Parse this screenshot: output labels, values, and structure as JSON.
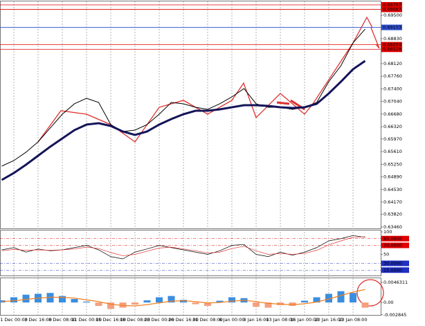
{
  "chart_data": [
    {
      "type": "line",
      "categories": [
        null,
        "1 Dec 00:00",
        null,
        "3 Dec 16:00",
        null,
        "8 Dec 08:00",
        null,
        "11 Dec 00:00",
        null,
        "15 Dec 16:00",
        null,
        "18 Dec 08:00",
        null,
        "23 Dec 00:00",
        null,
        "26 Dec 16:00",
        null,
        "31 Dec 08:00",
        null,
        "6 Jan 00:00",
        null,
        "8 Jan 16:00",
        null,
        "13 Jan 08:00",
        null,
        "16 Jan 00:00",
        null,
        "20 Jan 16:00",
        null,
        "23 Jan 08:00",
        null
      ],
      "series": [
        {
          "name": "Price",
          "color": "#000000",
          "width": 1,
          "values": [
            0.65197,
            0.65355,
            0.65592,
            0.65888,
            0.66283,
            0.66677,
            0.66974,
            0.67131,
            0.67013,
            0.66381,
            0.66184,
            0.66223,
            0.66381,
            0.66677,
            0.67013,
            0.66974,
            0.66875,
            0.66816,
            0.66974,
            0.67171,
            0.67408,
            0.66974,
            0.66875,
            0.66875,
            0.66816,
            0.66875,
            0.67013,
            0.67605,
            0.68059,
            0.68711,
            0.69105
          ]
        },
        {
          "name": "MA",
          "color": "#14145a",
          "width": 3,
          "values": [
            0.64802,
            0.65,
            0.65236,
            0.65493,
            0.6575,
            0.65986,
            0.66223,
            0.66381,
            0.66421,
            0.66342,
            0.66184,
            0.66085,
            0.66184,
            0.66381,
            0.66539,
            0.66677,
            0.66776,
            0.66776,
            0.66816,
            0.66875,
            0.66934,
            0.66934,
            0.66914,
            0.66875,
            0.66855,
            0.66875,
            0.66974,
            0.6727,
            0.67605,
            0.6796,
            0.68198
          ]
        }
      ],
      "ylim": [
        0.6342,
        0.69895
      ],
      "yticks": [
        {
          "value": 0.695,
          "label": "0.69500"
        },
        {
          "value": 0.6883,
          "label": "0.68830"
        },
        {
          "value": 0.6812,
          "label": "0.68120"
        },
        {
          "value": 0.6776,
          "label": "0.67760"
        },
        {
          "value": 0.674,
          "label": "0.67400"
        },
        {
          "value": 0.6704,
          "label": "0.67040"
        },
        {
          "value": 0.6668,
          "label": "0.66680"
        },
        {
          "value": 0.6632,
          "label": "0.66320"
        },
        {
          "value": 0.6597,
          "label": "0.65970"
        },
        {
          "value": 0.6561,
          "label": "0.65610"
        },
        {
          "value": 0.6525,
          "label": "0.65250"
        },
        {
          "value": 0.6489,
          "label": "0.64890"
        },
        {
          "value": 0.6453,
          "label": "0.64530"
        },
        {
          "value": 0.6417,
          "label": "0.64170"
        },
        {
          "value": 0.6382,
          "label": "0.63820"
        },
        {
          "value": 0.6346,
          "label": "0.63460"
        }
      ],
      "levels": [
        {
          "value": 0.69797,
          "color": "#e00000"
        },
        {
          "value": 0.69667,
          "color": "#e00000"
        },
        {
          "value": 0.69153,
          "color": "#3050d0"
        },
        {
          "value": 0.68659,
          "color": "#e00000"
        },
        {
          "value": 0.68528,
          "color": "#e00000"
        }
      ]
    },
    {
      "type": "line",
      "series": [
        {
          "name": "Fast",
          "color": "#000000",
          "width": 0.7,
          "values": [
            60,
            65,
            55,
            62,
            58,
            60,
            65,
            70,
            60,
            45,
            40,
            55,
            62,
            70,
            65,
            60,
            55,
            50,
            58,
            70,
            72,
            50,
            45,
            55,
            48,
            55,
            65,
            80,
            85,
            92,
            88
          ]
        },
        {
          "name": "Slow",
          "color": "#e03030",
          "width": 0.7,
          "values": [
            58,
            61,
            59,
            60,
            59,
            60,
            62,
            66,
            63,
            54,
            47,
            50,
            57,
            64,
            66,
            62,
            58,
            53,
            55,
            63,
            68,
            58,
            50,
            52,
            50,
            52,
            59,
            71,
            80,
            88,
            89
          ]
        }
      ],
      "ylim": [
        0,
        100
      ],
      "yticks": [
        100,
        {
          "value": 85,
          "label": "85.0000"
        },
        {
          "value": 70,
          "label": "70.0000"
        },
        50,
        {
          "value": 30,
          "label": "30.0000"
        },
        {
          "value": 15,
          "label": "15.0000"
        }
      ],
      "ytick_colors": [
        null,
        "#e00000",
        "#e00000",
        null,
        "#2030c0",
        "#2030c0"
      ]
    },
    {
      "type": "bar",
      "values": [
        0.0005,
        0.0012,
        0.0018,
        0.002,
        0.0022,
        0.0015,
        0.0008,
        0.0002,
        -0.0008,
        -0.0015,
        -0.0012,
        -0.0005,
        0.0005,
        0.0012,
        0.0015,
        0.0006,
        -0.0004,
        -0.0008,
        0.0004,
        0.0012,
        0.001,
        -0.001,
        -0.0012,
        -0.0006,
        -0.0008,
        0.0004,
        0.0012,
        0.002,
        0.0026,
        0.0022,
        -0.0012
      ],
      "positive_color": "#3a8ee0",
      "negative_color": "#f4a080",
      "line_values": [
        0.0002,
        0.0004,
        0.0007,
        0.001,
        0.0012,
        0.0012,
        0.001,
        0.0006,
        0.0002,
        -0.0004,
        -0.0007,
        -0.0008,
        -0.0005,
        -0.0001,
        0.0003,
        0.0004,
        0.0002,
        -0.0001,
        0.0,
        0.0003,
        0.0005,
        0.0002,
        -0.0002,
        -0.0004,
        -0.0005,
        -0.0003,
        0.0001,
        0.0008,
        0.0016,
        0.0024,
        0.003
      ],
      "line_color": "#f08020",
      "ylim": [
        -0.00303,
        0.00559
      ],
      "yticks": [
        0.0046311,
        {
          "value": 0,
          "label": "0.00"
        },
        -0.002845
      ]
    }
  ]
}
